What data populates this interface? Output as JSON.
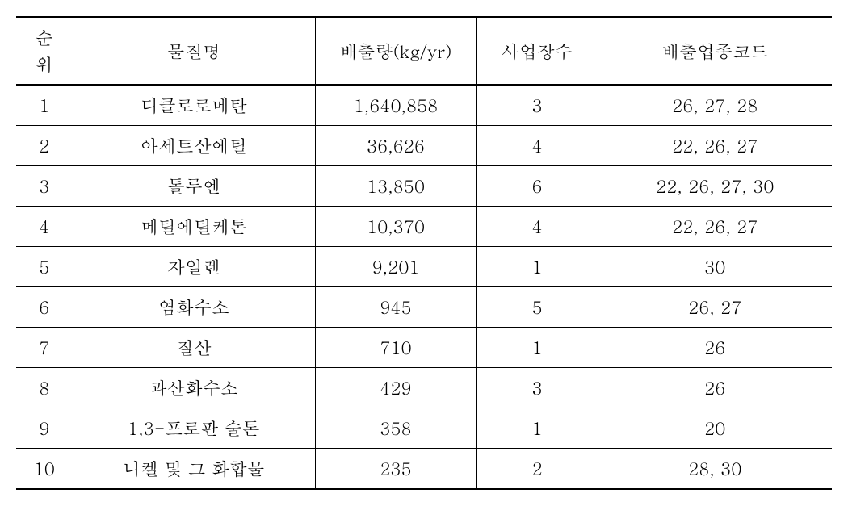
{
  "table": {
    "columns": [
      {
        "key": "rank",
        "label_line1": "순",
        "label_line2": "위"
      },
      {
        "key": "name",
        "label": "물질명"
      },
      {
        "key": "emission",
        "label": "배출량(kg/yr)"
      },
      {
        "key": "sites",
        "label": "사업장수"
      },
      {
        "key": "code",
        "label": "배출업종코드"
      }
    ],
    "rows": [
      {
        "rank": "1",
        "name": "디클로로메탄",
        "emission": "1,640,858",
        "sites": "3",
        "code": "26, 27, 28"
      },
      {
        "rank": "2",
        "name": "아세트산에틸",
        "emission": "36,626",
        "sites": "4",
        "code": "22, 26, 27"
      },
      {
        "rank": "3",
        "name": "톨루엔",
        "emission": "13,850",
        "sites": "6",
        "code": "22, 26, 27, 30"
      },
      {
        "rank": "4",
        "name": "메틸에틸케톤",
        "emission": "10,370",
        "sites": "4",
        "code": "22, 26, 27"
      },
      {
        "rank": "5",
        "name": "자일렌",
        "emission": "9,201",
        "sites": "1",
        "code": "30"
      },
      {
        "rank": "6",
        "name": "염화수소",
        "emission": "945",
        "sites": "5",
        "code": "26, 27"
      },
      {
        "rank": "7",
        "name": "질산",
        "emission": "710",
        "sites": "1",
        "code": "26"
      },
      {
        "rank": "8",
        "name": "과산화수소",
        "emission": "429",
        "sites": "3",
        "code": "26"
      },
      {
        "rank": "9",
        "name": "1,3-프로판 술톤",
        "emission": "358",
        "sites": "1",
        "code": "20"
      },
      {
        "rank": "10",
        "name": "니켈 및 그 화합물",
        "emission": "235",
        "sites": "2",
        "code": "28, 30"
      }
    ]
  }
}
